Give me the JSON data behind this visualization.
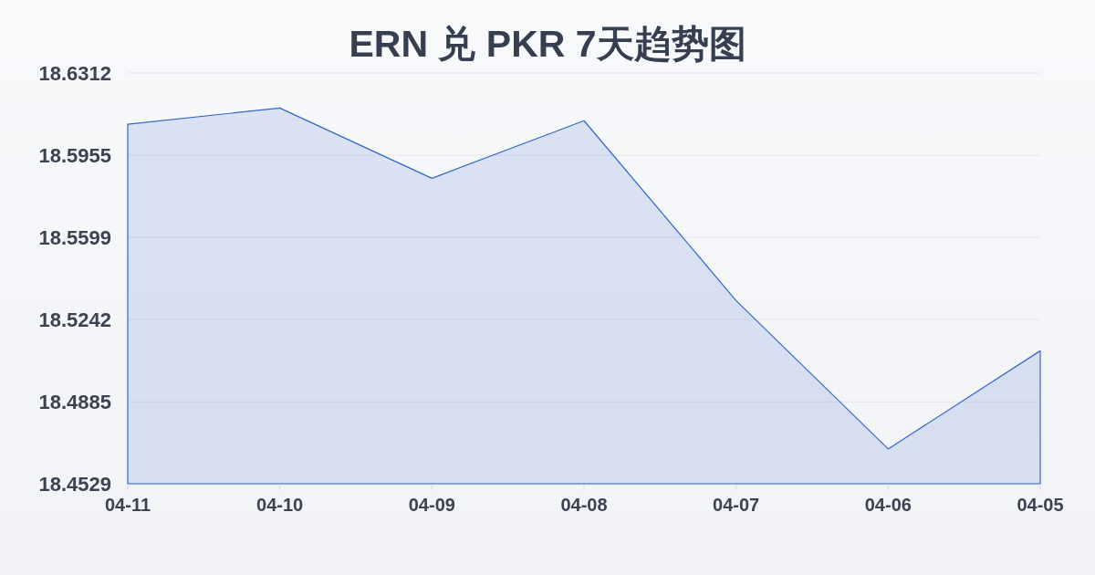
{
  "chart_data": {
    "type": "area",
    "title": "ERN 兑 PKR 7天趋势图",
    "categories": [
      "04-11",
      "04-10",
      "04-09",
      "04-08",
      "04-07",
      "04-06",
      "04-05"
    ],
    "values": [
      18.609,
      18.616,
      18.5855,
      18.6105,
      18.5324,
      18.468,
      18.5106
    ],
    "color": "#3366cc",
    "ylim": [
      18.4529,
      18.6312
    ],
    "yticks": [
      18.4529,
      18.4885,
      18.5242,
      18.5599,
      18.5955,
      18.6312
    ],
    "grid": "y"
  }
}
